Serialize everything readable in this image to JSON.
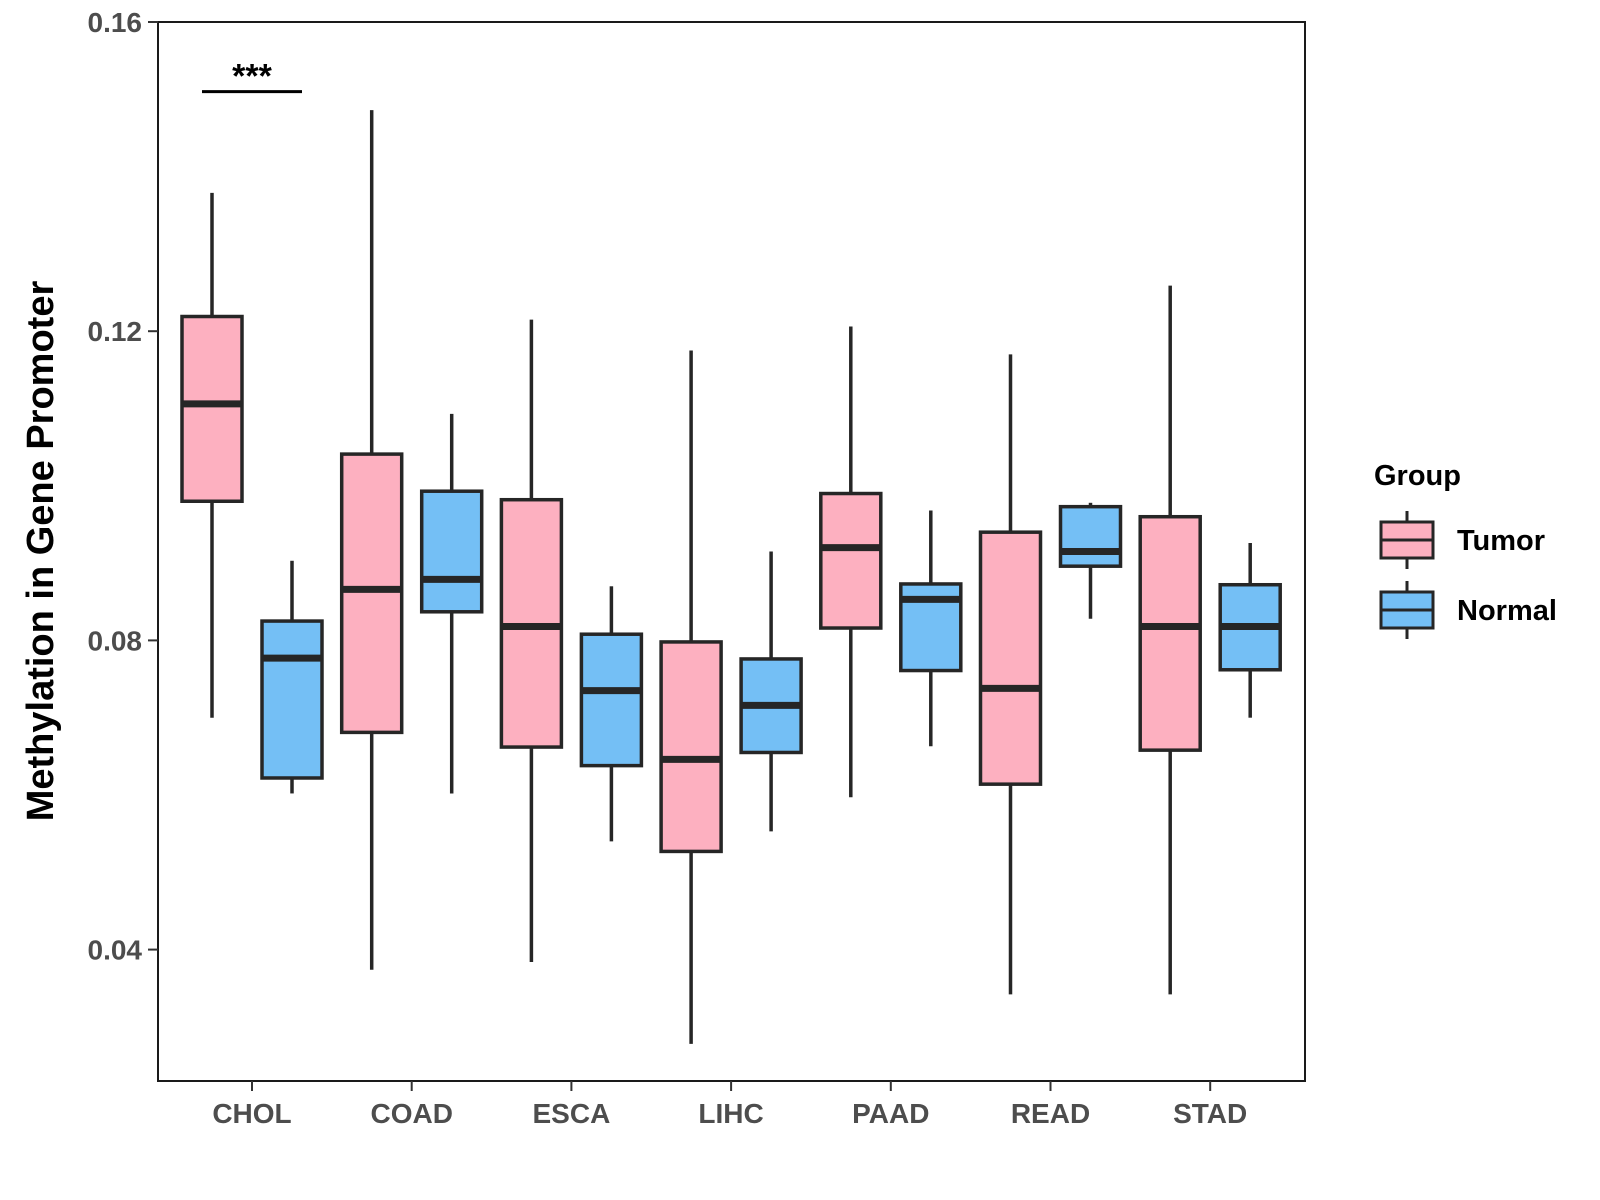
{
  "chart_data": {
    "type": "boxplot",
    "title": "",
    "xlabel": "",
    "ylabel": "Methylation in Gene Promoter",
    "ylim": [
      0.023,
      0.16
    ],
    "yticks": [
      0.04,
      0.08,
      0.12,
      0.16
    ],
    "ytick_labels": [
      "0.04",
      "0.08",
      "0.12",
      "0.16"
    ],
    "categories": [
      "CHOL",
      "COAD",
      "ESCA",
      "LIHC",
      "PAAD",
      "READ",
      "STAD"
    ],
    "legend": {
      "title": "Group",
      "position": "right",
      "entries": [
        {
          "name": "Tumor",
          "color": "#FDB0C0"
        },
        {
          "name": "Normal",
          "color": "#74BFF5"
        }
      ]
    },
    "series": [
      {
        "name": "Tumor",
        "color": "#FDB0C0",
        "boxes": [
          {
            "category": "CHOL",
            "whisker_low": 0.07,
            "q1": 0.098,
            "median": 0.1106,
            "q3": 0.1219,
            "whisker_high": 0.1379
          },
          {
            "category": "COAD",
            "whisker_low": 0.0374,
            "q1": 0.0681,
            "median": 0.0866,
            "q3": 0.1041,
            "whisker_high": 0.1486
          },
          {
            "category": "ESCA",
            "whisker_low": 0.0384,
            "q1": 0.0662,
            "median": 0.0818,
            "q3": 0.0982,
            "whisker_high": 0.1215
          },
          {
            "category": "LIHC",
            "whisker_low": 0.0278,
            "q1": 0.0527,
            "median": 0.0646,
            "q3": 0.0798,
            "whisker_high": 0.1175
          },
          {
            "category": "PAAD",
            "whisker_low": 0.0597,
            "q1": 0.0816,
            "median": 0.092,
            "q3": 0.099,
            "whisker_high": 0.1206
          },
          {
            "category": "READ",
            "whisker_low": 0.0342,
            "q1": 0.0614,
            "median": 0.0738,
            "q3": 0.094,
            "whisker_high": 0.117
          },
          {
            "category": "STAD",
            "whisker_low": 0.0342,
            "q1": 0.0658,
            "median": 0.0818,
            "q3": 0.096,
            "whisker_high": 0.1259
          }
        ]
      },
      {
        "name": "Normal",
        "color": "#74BFF5",
        "boxes": [
          {
            "category": "CHOL",
            "whisker_low": 0.0602,
            "q1": 0.0622,
            "median": 0.0777,
            "q3": 0.0825,
            "whisker_high": 0.0903
          },
          {
            "category": "COAD",
            "whisker_low": 0.0602,
            "q1": 0.0837,
            "median": 0.0879,
            "q3": 0.0993,
            "whisker_high": 0.1093
          },
          {
            "category": "ESCA",
            "whisker_low": 0.054,
            "q1": 0.0638,
            "median": 0.0735,
            "q3": 0.0808,
            "whisker_high": 0.087
          },
          {
            "category": "LIHC",
            "whisker_low": 0.0553,
            "q1": 0.0655,
            "median": 0.0716,
            "q3": 0.0776,
            "whisker_high": 0.0915
          },
          {
            "category": "PAAD",
            "whisker_low": 0.0663,
            "q1": 0.0761,
            "median": 0.0853,
            "q3": 0.0873,
            "whisker_high": 0.0968
          },
          {
            "category": "READ",
            "whisker_low": 0.0828,
            "q1": 0.0896,
            "median": 0.0915,
            "q3": 0.0973,
            "whisker_high": 0.0978
          },
          {
            "category": "STAD",
            "whisker_low": 0.07,
            "q1": 0.0762,
            "median": 0.0818,
            "q3": 0.0872,
            "whisker_high": 0.0926
          }
        ]
      }
    ],
    "annotations": [
      {
        "text": "***",
        "category": "CHOL",
        "y": 0.151
      }
    ]
  }
}
